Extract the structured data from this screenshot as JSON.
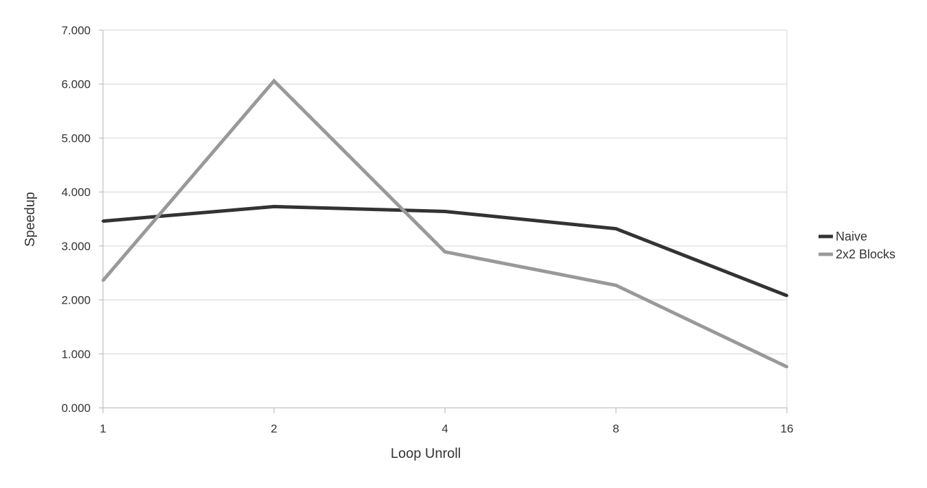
{
  "chart_data": {
    "type": "line",
    "title": "",
    "xlabel": "Loop Unroll",
    "ylabel": "Speedup",
    "categories": [
      "1",
      "2",
      "4",
      "8",
      "16"
    ],
    "y_ticks": [
      "0.000",
      "1.000",
      "2.000",
      "3.000",
      "4.000",
      "5.000",
      "6.000",
      "7.000"
    ],
    "ylim": [
      0,
      7
    ],
    "grid": true,
    "legend_position": "right",
    "series": [
      {
        "name": "Naive",
        "color": "#333333",
        "values": [
          3.46,
          3.73,
          3.64,
          3.32,
          2.08
        ]
      },
      {
        "name": "2x2 Blocks",
        "color": "#999999",
        "values": [
          2.36,
          6.06,
          2.89,
          2.27,
          0.76
        ]
      }
    ]
  }
}
